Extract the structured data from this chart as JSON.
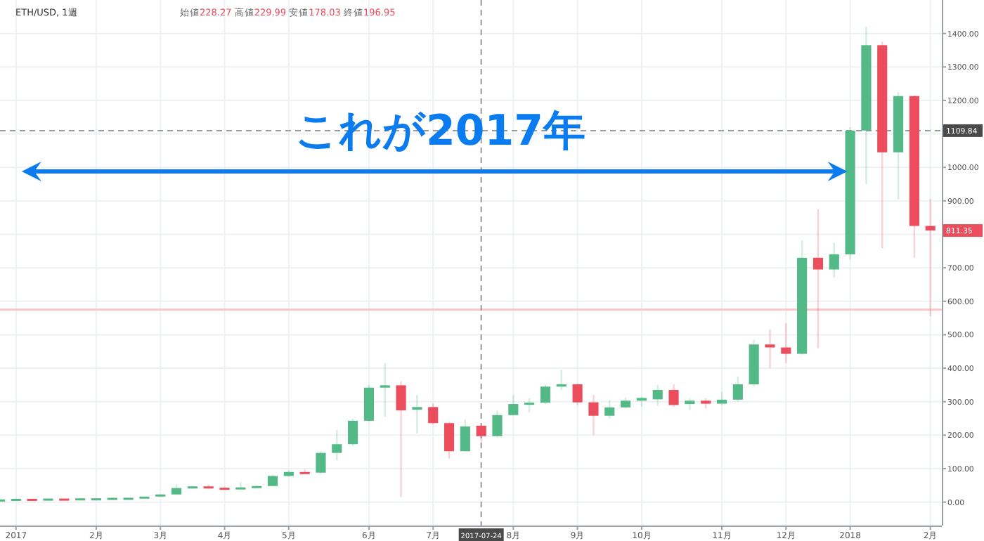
{
  "chart_data": {
    "type": "candlestick",
    "title": "ETH/USD, 1週",
    "subtitle": "始値228.27 高値229.99 安値178.03 終値196.95",
    "annotations": [
      "これが2017年",
      {
        "text": "811.35",
        "x": "2018-02-05",
        "y": 811.35
      }
    ],
    "x": [
      "2016-12-26",
      "2017-01-02",
      "2017-01-09",
      "2017-01-16",
      "2017-01-23",
      "2017-01-30",
      "2017-02-06",
      "2017-02-13",
      "2017-02-20",
      "2017-02-27",
      "2017-03-06",
      "2017-03-13",
      "2017-03-20",
      "2017-03-27",
      "2017-04-03",
      "2017-04-10",
      "2017-04-17",
      "2017-04-24",
      "2017-05-01",
      "2017-05-08",
      "2017-05-15",
      "2017-05-22",
      "2017-05-29",
      "2017-06-05",
      "2017-06-12",
      "2017-06-19",
      "2017-06-26",
      "2017-07-03",
      "2017-07-10",
      "2017-07-17",
      "2017-07-24",
      "2017-07-31",
      "2017-08-07",
      "2017-08-14",
      "2017-08-21",
      "2017-08-28",
      "2017-09-04",
      "2017-09-11",
      "2017-09-18",
      "2017-09-25",
      "2017-10-02",
      "2017-10-09",
      "2017-10-16",
      "2017-10-23",
      "2017-10-30",
      "2017-11-06",
      "2017-11-13",
      "2017-11-20",
      "2017-11-27",
      "2017-12-04",
      "2017-12-11",
      "2017-12-18",
      "2017-12-25",
      "2018-01-01",
      "2018-01-08",
      "2018-01-15",
      "2018-01-22",
      "2018-01-29",
      "2018-02-05"
    ],
    "ohlc": [
      [
        7.2,
        8.4,
        7.0,
        8.0
      ],
      [
        8.0,
        11.2,
        8.0,
        9.9
      ],
      [
        9.9,
        10.9,
        9.5,
        9.7
      ],
      [
        9.7,
        11.0,
        9.6,
        10.6
      ],
      [
        10.6,
        10.8,
        10.3,
        10.5
      ],
      [
        10.5,
        11.6,
        10.4,
        11.3
      ],
      [
        11.3,
        11.5,
        10.9,
        11.4
      ],
      [
        11.4,
        13.0,
        11.3,
        12.8
      ],
      [
        12.8,
        13.2,
        12.4,
        13.0
      ],
      [
        13.0,
        17.0,
        12.8,
        16.5
      ],
      [
        16.5,
        23.5,
        16.0,
        22.9
      ],
      [
        22.9,
        53,
        22.5,
        42
      ],
      [
        42,
        49,
        40,
        47
      ],
      [
        47,
        52,
        42,
        43
      ],
      [
        43,
        46,
        38,
        40
      ],
      [
        40,
        60,
        39,
        44
      ],
      [
        44,
        50,
        44,
        48
      ],
      [
        48,
        82,
        47,
        78
      ],
      [
        78,
        96,
        75,
        90
      ],
      [
        90,
        97,
        84,
        88
      ],
      [
        88,
        152,
        85,
        147
      ],
      [
        147,
        215,
        125,
        173
      ],
      [
        173,
        250,
        168,
        243
      ],
      [
        243,
        350,
        240,
        342
      ],
      [
        342,
        415,
        255,
        349
      ],
      [
        349,
        360,
        15,
        274
      ],
      [
        276,
        320,
        205,
        284
      ],
      [
        284,
        295,
        232,
        236
      ],
      [
        236,
        240,
        130,
        152
      ],
      [
        152,
        247,
        150,
        226
      ],
      [
        228.27,
        229.99,
        178.03,
        196.95
      ],
      [
        197,
        273,
        192,
        260
      ],
      [
        260,
        320,
        258,
        293
      ],
      [
        293,
        310,
        268,
        297
      ],
      [
        297,
        350,
        292,
        345
      ],
      [
        345,
        396,
        335,
        352
      ],
      [
        352,
        355,
        290,
        298
      ],
      [
        298,
        320,
        200,
        258
      ],
      [
        258,
        305,
        250,
        283
      ],
      [
        283,
        312,
        280,
        303
      ],
      [
        303,
        315,
        285,
        311
      ],
      [
        307,
        350,
        288,
        335
      ],
      [
        335,
        352,
        285,
        290
      ],
      [
        293,
        310,
        275,
        303
      ],
      [
        303,
        310,
        280,
        294
      ],
      [
        294,
        330,
        290,
        306
      ],
      [
        306,
        375,
        300,
        352
      ],
      [
        352,
        485,
        345,
        471
      ],
      [
        471,
        516,
        400,
        462
      ],
      [
        462,
        534,
        415,
        443
      ],
      [
        443,
        782,
        440,
        730
      ],
      [
        730,
        875,
        460,
        695
      ],
      [
        695,
        775,
        670,
        740
      ],
      [
        740,
        1120,
        725,
        1110
      ],
      [
        1110,
        1420,
        950,
        1365
      ],
      [
        1365,
        1375,
        758,
        1045
      ],
      [
        1045,
        1225,
        905,
        1213
      ],
      [
        1213,
        1215,
        730,
        825
      ],
      [
        825,
        905,
        555,
        811.35
      ]
    ],
    "colors": [
      "#53b987",
      "#53b987",
      "#eb4d5c",
      "#53b987",
      "#eb4d5c",
      "#53b987",
      "#53b987",
      "#53b987",
      "#53b987",
      "#53b987",
      "#53b987",
      "#53b987",
      "#53b987",
      "#eb4d5c",
      "#eb4d5c",
      "#53b987",
      "#53b987",
      "#53b987",
      "#53b987",
      "#eb4d5c",
      "#53b987",
      "#53b987",
      "#53b987",
      "#53b987",
      "#53b987",
      "#eb4d5c",
      "#53b987",
      "#eb4d5c",
      "#eb4d5c",
      "#53b987",
      "#eb4d5c",
      "#53b987",
      "#53b987",
      "#53b987",
      "#53b987",
      "#53b987",
      "#eb4d5c",
      "#eb4d5c",
      "#53b987",
      "#53b987",
      "#53b987",
      "#53b987",
      "#eb4d5c",
      "#53b987",
      "#eb4d5c",
      "#53b987",
      "#53b987",
      "#53b987",
      "#eb4d5c",
      "#eb4d5c",
      "#53b987",
      "#eb4d5c",
      "#53b987",
      "#53b987",
      "#53b987",
      "#eb4d5c",
      "#53b987",
      "#eb4d5c",
      "#eb4d5c"
    ],
    "xlim": [
      "2016-12-26",
      "2018-02-10"
    ],
    "xticks": [
      {
        "value": "2017-01-02",
        "label": "2017"
      },
      {
        "value": "2017-02-06",
        "label": "2月"
      },
      {
        "value": "2017-03-06",
        "label": "3月"
      },
      {
        "value": "2017-04-03",
        "label": "4月"
      },
      {
        "value": "2017-05-01",
        "label": "5月"
      },
      {
        "value": "2017-06-05",
        "label": "6月"
      },
      {
        "value": "2017-07-03",
        "label": "7月"
      },
      {
        "value": "2017-08-07",
        "label": "8月"
      },
      {
        "value": "2017-09-04",
        "label": "9月"
      },
      {
        "value": "2017-10-02",
        "label": "10月"
      },
      {
        "value": "2017-11-06",
        "label": "11月"
      },
      {
        "value": "2017-12-04",
        "label": "12月"
      },
      {
        "value": "2018-01-01",
        "label": "2018"
      },
      {
        "value": "2018-02-05",
        "label": "2月"
      }
    ],
    "ylim": [
      -70,
      1500
    ],
    "yticks": [
      {
        "value": 0,
        "label": "0.00"
      },
      {
        "value": 100,
        "label": "100.00"
      },
      {
        "value": 200,
        "label": "200.00"
      },
      {
        "value": 300,
        "label": "300.00"
      },
      {
        "value": 400,
        "label": "400.00"
      },
      {
        "value": 500,
        "label": "500.00"
      },
      {
        "value": 600,
        "label": "600.00"
      },
      {
        "value": 700,
        "label": "700.00"
      },
      {
        "value": 800,
        "label": null
      },
      {
        "value": 900,
        "label": "900.00"
      },
      {
        "value": 1000,
        "label": "1000.00"
      },
      {
        "value": 1100,
        "label": null
      },
      {
        "value": 1200,
        "label": "1200.00"
      },
      {
        "value": 1300,
        "label": "1300.00"
      },
      {
        "value": 1400,
        "label": "1400.00"
      }
    ],
    "ref_lines": [
      {
        "axis": "y",
        "value": 575,
        "color": "#f7c5ca",
        "line_style": "solid"
      },
      {
        "axis": "x",
        "value": "2017-07-24",
        "label": "2017-07-24",
        "color": "#9a9a9a",
        "line_style": "dashed"
      },
      {
        "axis": "y",
        "value": 1109.84,
        "label": "1109.84",
        "color": "#9a9a9a",
        "line_style": "dashed"
      }
    ],
    "grid": true
  }
}
